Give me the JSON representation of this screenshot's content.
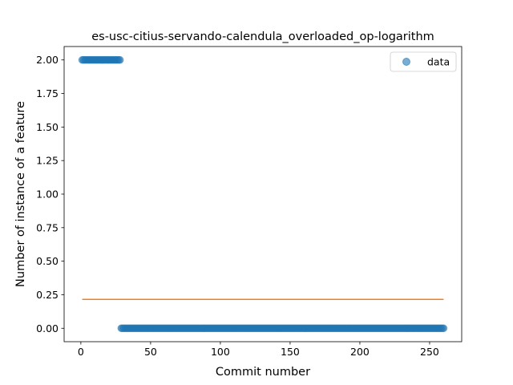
{
  "chart_data": {
    "type": "scatter",
    "title": "es-usc-citius-servando-calendula_overloaded_op-logarithm",
    "xlabel": "Commit number",
    "ylabel": "Number of instance of a feature",
    "xlim": [
      -12,
      273
    ],
    "ylim": [
      -0.1,
      2.1
    ],
    "xticks": [
      0,
      50,
      100,
      150,
      200,
      250
    ],
    "yticks": [
      0.0,
      0.25,
      0.5,
      0.75,
      1.0,
      1.25,
      1.5,
      1.75,
      2.0
    ],
    "ytick_labels": [
      "0.00",
      "0.25",
      "0.50",
      "0.75",
      "1.00",
      "1.25",
      "1.50",
      "1.75",
      "2.00"
    ],
    "grid": false,
    "legend": {
      "position": "top-right",
      "entries": [
        "data"
      ]
    },
    "series": [
      {
        "name": "data",
        "kind": "scatter",
        "color": "#1f77b4",
        "segments": [
          {
            "x_start": 1,
            "x_end": 28,
            "y": 2
          },
          {
            "x_start": 29,
            "x_end": 260,
            "y": 0
          }
        ]
      },
      {
        "kind": "line",
        "color": "#ff7f0e",
        "x": [
          1,
          260
        ],
        "y": [
          0.215,
          0.215
        ]
      }
    ]
  }
}
